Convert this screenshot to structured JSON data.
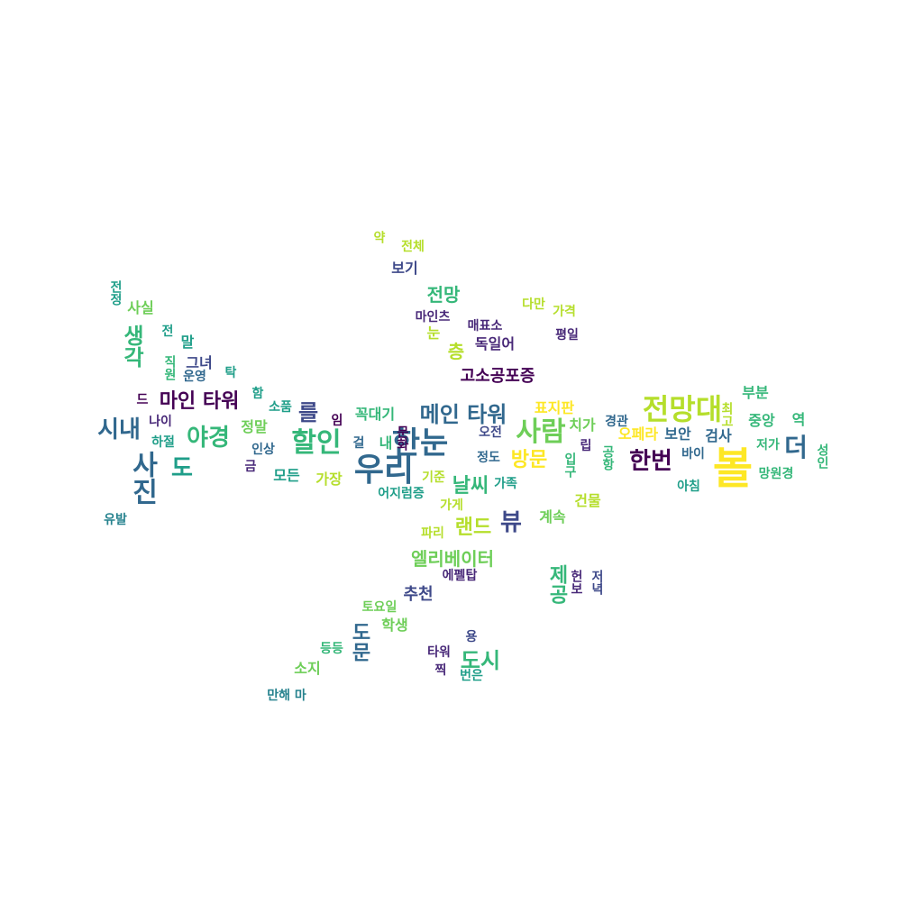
{
  "palette": {
    "yellow": "#fde725",
    "lime": "#b5de2b",
    "green": "#6ece58",
    "teal": "#35b779",
    "sea": "#1f9e89",
    "cyan": "#26828e",
    "blue": "#31688e",
    "indigo": "#3e4989",
    "violet": "#482878",
    "purple": "#440154"
  },
  "words": [
    {
      "text": "약",
      "color": "lime",
      "rot": true
    },
    {
      "text": "전체",
      "color": "lime"
    },
    {
      "text": "보기",
      "color": "indigo"
    },
    {
      "text": "전망",
      "color": "teal"
    },
    {
      "text": "마인츠",
      "color": "violet"
    },
    {
      "text": "다만",
      "color": "lime"
    },
    {
      "text": "가격",
      "color": "lime"
    },
    {
      "text": "매표소",
      "color": "violet"
    },
    {
      "text": "눈",
      "color": "lime"
    },
    {
      "text": "평일",
      "color": "violet"
    },
    {
      "text": "독일어",
      "color": "violet"
    },
    {
      "text": "층",
      "color": "lime"
    },
    {
      "text": "고소공포증",
      "color": "purple"
    },
    {
      "text": "전정",
      "color": "sea",
      "rot": true
    },
    {
      "text": "사실",
      "color": "green"
    },
    {
      "text": "전",
      "color": "sea"
    },
    {
      "text": "말",
      "color": "sea"
    },
    {
      "text": "생각",
      "color": "teal",
      "rot": true
    },
    {
      "text": "그녀",
      "color": "indigo"
    },
    {
      "text": "직원",
      "color": "teal",
      "rot": true
    },
    {
      "text": "운영",
      "color": "blue"
    },
    {
      "text": "탁",
      "color": "sea"
    },
    {
      "text": "함",
      "color": "sea"
    },
    {
      "text": "드",
      "color": "purple"
    },
    {
      "text": "마인 타워",
      "color": "purple"
    },
    {
      "text": "를",
      "color": "indigo"
    },
    {
      "text": "소품",
      "color": "sea"
    },
    {
      "text": "꼭대기",
      "color": "teal"
    },
    {
      "text": "메인 타워",
      "color": "blue"
    },
    {
      "text": "표지판",
      "color": "yellow"
    },
    {
      "text": "전망대",
      "color": "lime"
    },
    {
      "text": "부분",
      "color": "teal"
    },
    {
      "text": "최고",
      "color": "lime",
      "rot": true
    },
    {
      "text": "중앙",
      "color": "teal"
    },
    {
      "text": "역",
      "color": "teal"
    },
    {
      "text": "시내",
      "color": "blue"
    },
    {
      "text": "나이",
      "color": "violet"
    },
    {
      "text": "야경",
      "color": "teal"
    },
    {
      "text": "정말",
      "color": "green"
    },
    {
      "text": "임",
      "color": "purple"
    },
    {
      "text": "할인",
      "color": "teal"
    },
    {
      "text": "한눈",
      "color": "blue"
    },
    {
      "text": "사람",
      "color": "green"
    },
    {
      "text": "치가",
      "color": "green"
    },
    {
      "text": "경관",
      "color": "blue"
    },
    {
      "text": "하절",
      "color": "sea"
    },
    {
      "text": "인상",
      "color": "blue"
    },
    {
      "text": "걸",
      "color": "blue"
    },
    {
      "text": "내",
      "color": "teal"
    },
    {
      "text": "문화",
      "color": "purple",
      "rot": true
    },
    {
      "text": "오전",
      "color": "indigo"
    },
    {
      "text": "오페라",
      "color": "yellow"
    },
    {
      "text": "보안",
      "color": "blue"
    },
    {
      "text": "검사",
      "color": "blue"
    },
    {
      "text": "저가",
      "color": "teal"
    },
    {
      "text": "더",
      "color": "blue"
    },
    {
      "text": "립",
      "color": "violet"
    },
    {
      "text": "사진",
      "color": "blue",
      "rot": true
    },
    {
      "text": "도",
      "color": "sea"
    },
    {
      "text": "금",
      "color": "violet"
    },
    {
      "text": "모든",
      "color": "sea"
    },
    {
      "text": "우리",
      "color": "blue"
    },
    {
      "text": "정도",
      "color": "blue"
    },
    {
      "text": "방문",
      "color": "yellow"
    },
    {
      "text": "한번",
      "color": "purple"
    },
    {
      "text": "바이",
      "color": "blue"
    },
    {
      "text": "볼",
      "color": "yellow"
    },
    {
      "text": "입구",
      "color": "teal",
      "rot": true
    },
    {
      "text": "공항",
      "color": "teal",
      "rot": true
    },
    {
      "text": "성인",
      "color": "teal",
      "rot": true
    },
    {
      "text": "망원경",
      "color": "teal"
    },
    {
      "text": "가장",
      "color": "lime"
    },
    {
      "text": "기준",
      "color": "lime"
    },
    {
      "text": "날씨",
      "color": "teal"
    },
    {
      "text": "가족",
      "color": "sea"
    },
    {
      "text": "아침",
      "color": "sea"
    },
    {
      "text": "어지럼증",
      "color": "sea"
    },
    {
      "text": "가게",
      "color": "lime"
    },
    {
      "text": "건물",
      "color": "lime"
    },
    {
      "text": "유발",
      "color": "cyan"
    },
    {
      "text": "계속",
      "color": "green"
    },
    {
      "text": "뷰",
      "color": "indigo"
    },
    {
      "text": "랜드",
      "color": "lime"
    },
    {
      "text": "파리",
      "color": "lime"
    },
    {
      "text": "엘리베이터",
      "color": "green"
    },
    {
      "text": "에펠탑",
      "color": "violet"
    },
    {
      "text": "제공",
      "color": "teal",
      "rot": true
    },
    {
      "text": "헌보",
      "color": "violet",
      "rot": true
    },
    {
      "text": "저녁",
      "color": "indigo",
      "rot": true
    },
    {
      "text": "추천",
      "color": "indigo"
    },
    {
      "text": "토요일",
      "color": "green"
    },
    {
      "text": "도문",
      "color": "blue",
      "rot": true
    },
    {
      "text": "학생",
      "color": "green"
    },
    {
      "text": "용",
      "color": "indigo"
    },
    {
      "text": "등등",
      "color": "teal"
    },
    {
      "text": "타워",
      "color": "violet"
    },
    {
      "text": "도시",
      "color": "teal"
    },
    {
      "text": "소지",
      "color": "green"
    },
    {
      "text": "찍",
      "color": "violet"
    },
    {
      "text": "번은",
      "color": "sea"
    },
    {
      "text": "만해 마",
      "color": "cyan"
    }
  ]
}
